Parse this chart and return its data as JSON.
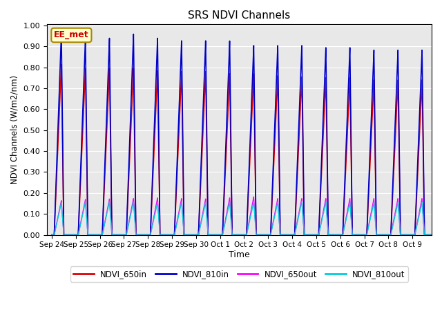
{
  "title": "SRS NDVI Channels",
  "xlabel": "Time",
  "ylabel": "NDVI Channels (W/m2/nm)",
  "ylim": [
    0.0,
    1.0
  ],
  "yticks": [
    0.0,
    0.1,
    0.2,
    0.3,
    0.4,
    0.5,
    0.6,
    0.7,
    0.8,
    0.9,
    1.0
  ],
  "bg_color": "#e8e8e8",
  "grid_color": "#ffffff",
  "annotation_text": "EE_met",
  "annotation_bg": "#ffffcc",
  "annotation_border": "#aa8800",
  "annotation_text_color": "#cc0000",
  "series": {
    "NDVI_650in": {
      "color": "#dd0000",
      "lw": 1.2
    },
    "NDVI_810in": {
      "color": "#0000cc",
      "lw": 1.2
    },
    "NDVI_650out": {
      "color": "#ff00ff",
      "lw": 1.0
    },
    "NDVI_810out": {
      "color": "#00ccdd",
      "lw": 1.0
    }
  },
  "num_cycles": 16,
  "day_labels": [
    "Sep 24",
    "Sep 25",
    "Sep 26",
    "Sep 27",
    "Sep 28",
    "Sep 29",
    "Sep 30",
    "Oct 1",
    "Oct 2",
    "Oct 3",
    "Oct 4",
    "Oct 5",
    "Oct 6",
    "Oct 7",
    "Oct 8",
    "Oct 9"
  ],
  "peak_810in": [
    0.975,
    0.945,
    0.945,
    0.965,
    0.945,
    0.933,
    0.933,
    0.932,
    0.91,
    0.91,
    0.91,
    0.9,
    0.9,
    0.888,
    0.888,
    0.888
  ],
  "peak_650in": [
    0.82,
    0.8,
    0.8,
    0.8,
    0.79,
    0.785,
    0.785,
    0.775,
    0.775,
    0.765,
    0.76,
    0.755,
    0.755,
    0.745,
    0.745,
    0.745
  ],
  "peak_650out": [
    0.165,
    0.17,
    0.172,
    0.175,
    0.178,
    0.175,
    0.173,
    0.178,
    0.183,
    0.175,
    0.175,
    0.175,
    0.175,
    0.175,
    0.175,
    0.175
  ],
  "peak_810out": [
    0.155,
    0.158,
    0.16,
    0.158,
    0.156,
    0.158,
    0.156,
    0.158,
    0.158,
    0.158,
    0.16,
    0.158,
    0.156,
    0.156,
    0.156,
    0.156
  ]
}
